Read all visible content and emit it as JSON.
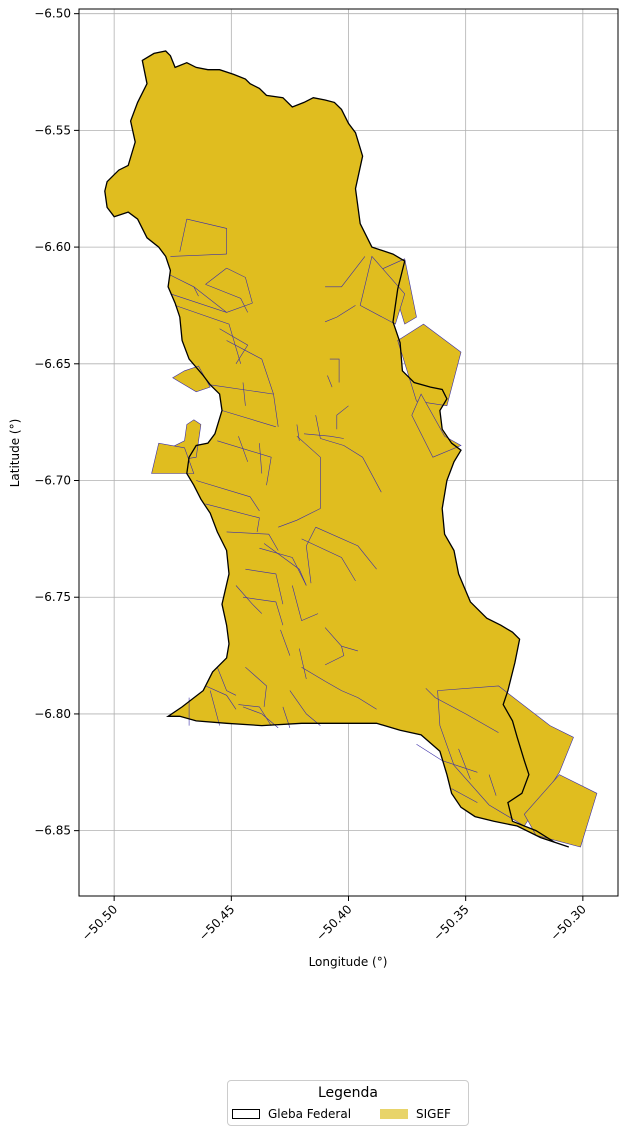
{
  "chart_data": {
    "type": "map",
    "xlabel": "Longitude (°)",
    "ylabel": "Latitude (°)",
    "xlim": [
      -50.515,
      -50.285
    ],
    "ylim": [
      -6.878,
      -6.498
    ],
    "grid": true,
    "x_ticks": [
      -50.5,
      -50.45,
      -50.4,
      -50.35,
      -50.3
    ],
    "x_tick_labels": [
      "−50.50",
      "−50.45",
      "−50.40",
      "−50.35",
      "−50.30"
    ],
    "y_ticks": [
      -6.5,
      -6.55,
      -6.6,
      -6.65,
      -6.7,
      -6.75,
      -6.8,
      -6.85
    ],
    "y_tick_labels": [
      "−6.50",
      "−6.55",
      "−6.60",
      "−6.65",
      "−6.70",
      "−6.75",
      "−6.80",
      "−6.85"
    ],
    "legend": {
      "title": "Legenda",
      "placement": "bottom-center",
      "entries": [
        {
          "label": "Gleba Federal",
          "style": "outline",
          "color": "#000000"
        },
        {
          "label": "SIGEF",
          "style": "fill",
          "color": "#e8d46a"
        }
      ]
    },
    "layers": [
      {
        "name": "Gleba Federal",
        "color": "#000000",
        "polygon": [
          [
            -50.488,
            -6.52
          ],
          [
            -50.483,
            -6.517
          ],
          [
            -50.478,
            -6.516
          ],
          [
            -50.476,
            -6.518
          ],
          [
            -50.474,
            -6.523
          ],
          [
            -50.469,
            -6.521
          ],
          [
            -50.465,
            -6.523
          ],
          [
            -50.46,
            -6.524
          ],
          [
            -50.455,
            -6.524
          ],
          [
            -50.449,
            -6.526
          ],
          [
            -50.444,
            -6.528
          ],
          [
            -50.442,
            -6.53
          ],
          [
            -50.438,
            -6.532
          ],
          [
            -50.435,
            -6.535
          ],
          [
            -50.428,
            -6.536
          ],
          [
            -50.424,
            -6.54
          ],
          [
            -50.419,
            -6.538
          ],
          [
            -50.415,
            -6.536
          ],
          [
            -50.41,
            -6.537
          ],
          [
            -50.406,
            -6.538
          ],
          [
            -50.403,
            -6.541
          ],
          [
            -50.4,
            -6.547
          ],
          [
            -50.397,
            -6.551
          ],
          [
            -50.394,
            -6.561
          ],
          [
            -50.397,
            -6.575
          ],
          [
            -50.395,
            -6.59
          ],
          [
            -50.39,
            -6.6
          ],
          [
            -50.381,
            -6.603
          ],
          [
            -50.376,
            -6.606
          ],
          [
            -50.379,
            -6.618
          ],
          [
            -50.381,
            -6.632
          ],
          [
            -50.378,
            -6.641
          ],
          [
            -50.377,
            -6.653
          ],
          [
            -50.372,
            -6.658
          ],
          [
            -50.365,
            -6.66
          ],
          [
            -50.36,
            -6.661
          ],
          [
            -50.358,
            -6.665
          ],
          [
            -50.361,
            -6.67
          ],
          [
            -50.36,
            -6.678
          ],
          [
            -50.356,
            -6.684
          ],
          [
            -50.352,
            -6.687
          ],
          [
            -50.355,
            -6.692
          ],
          [
            -50.358,
            -6.7
          ],
          [
            -50.36,
            -6.712
          ],
          [
            -50.359,
            -6.723
          ],
          [
            -50.355,
            -6.73
          ],
          [
            -50.353,
            -6.74
          ],
          [
            -50.348,
            -6.752
          ],
          [
            -50.341,
            -6.759
          ],
          [
            -50.335,
            -6.762
          ],
          [
            -50.33,
            -6.765
          ],
          [
            -50.327,
            -6.768
          ],
          [
            -50.329,
            -6.778
          ],
          [
            -50.332,
            -6.79
          ],
          [
            -50.334,
            -6.796
          ],
          [
            -50.33,
            -6.803
          ],
          [
            -50.328,
            -6.81
          ],
          [
            -50.325,
            -6.82
          ],
          [
            -50.323,
            -6.826
          ],
          [
            -50.326,
            -6.834
          ],
          [
            -50.332,
            -6.838
          ],
          [
            -50.33,
            -6.846
          ],
          [
            -50.32,
            -6.85
          ],
          [
            -50.312,
            -6.855
          ],
          [
            -50.306,
            -6.857
          ],
          [
            -50.318,
            -6.853
          ],
          [
            -50.328,
            -6.848
          ],
          [
            -50.338,
            -6.846
          ],
          [
            -50.346,
            -6.844
          ],
          [
            -50.352,
            -6.84
          ],
          [
            -50.356,
            -6.834
          ],
          [
            -50.358,
            -6.826
          ],
          [
            -50.361,
            -6.816
          ],
          [
            -50.369,
            -6.809
          ],
          [
            -50.378,
            -6.807
          ],
          [
            -50.388,
            -6.804
          ],
          [
            -50.403,
            -6.804
          ],
          [
            -50.42,
            -6.804
          ],
          [
            -50.437,
            -6.805
          ],
          [
            -50.452,
            -6.804
          ],
          [
            -50.465,
            -6.803
          ],
          [
            -50.472,
            -6.801
          ],
          [
            -50.477,
            -6.801
          ],
          [
            -50.471,
            -6.797
          ],
          [
            -50.462,
            -6.79
          ],
          [
            -50.458,
            -6.782
          ],
          [
            -50.452,
            -6.776
          ],
          [
            -50.451,
            -6.77
          ],
          [
            -50.452,
            -6.762
          ],
          [
            -50.454,
            -6.753
          ],
          [
            -50.451,
            -6.74
          ],
          [
            -50.452,
            -6.73
          ],
          [
            -50.456,
            -6.722
          ],
          [
            -50.459,
            -6.714
          ],
          [
            -50.463,
            -6.708
          ],
          [
            -50.466,
            -6.702
          ],
          [
            -50.469,
            -6.697
          ],
          [
            -50.468,
            -6.69
          ],
          [
            -50.465,
            -6.685
          ],
          [
            -50.46,
            -6.684
          ],
          [
            -50.457,
            -6.68
          ],
          [
            -50.454,
            -6.67
          ],
          [
            -50.455,
            -6.663
          ],
          [
            -50.459,
            -6.659
          ],
          [
            -50.462,
            -6.655
          ],
          [
            -50.468,
            -6.648
          ],
          [
            -50.471,
            -6.64
          ],
          [
            -50.472,
            -6.63
          ],
          [
            -50.474,
            -6.624
          ],
          [
            -50.477,
            -6.617
          ],
          [
            -50.476,
            -6.61
          ],
          [
            -50.478,
            -6.604
          ],
          [
            -50.481,
            -6.6
          ],
          [
            -50.486,
            -6.596
          ],
          [
            -50.49,
            -6.588
          ],
          [
            -50.494,
            -6.585
          ],
          [
            -50.5,
            -6.587
          ],
          [
            -50.503,
            -6.583
          ],
          [
            -50.504,
            -6.576
          ],
          [
            -50.503,
            -6.572
          ],
          [
            -50.498,
            -6.567
          ],
          [
            -50.494,
            -6.565
          ],
          [
            -50.491,
            -6.555
          ],
          [
            -50.493,
            -6.546
          ],
          [
            -50.49,
            -6.538
          ],
          [
            -50.486,
            -6.53
          ],
          [
            -50.488,
            -6.52
          ]
        ]
      },
      {
        "name": "SIGEF",
        "color": "#e0bd1f",
        "edge_color": "#3b2fa8",
        "parcels": [
          [
            [
              -50.466,
              -6.674
            ],
            [
              -50.463,
              -6.676
            ],
            [
              -50.465,
              -6.69
            ],
            [
              -50.477,
              -6.692
            ],
            [
              -50.476,
              -6.686
            ],
            [
              -50.47,
              -6.683
            ],
            [
              -50.469,
              -6.676
            ]
          ],
          [
            [
              -50.47,
              -6.686
            ],
            [
              -50.481,
              -6.684
            ],
            [
              -50.484,
              -6.697
            ],
            [
              -50.466,
              -6.697
            ]
          ],
          [
            [
              -50.47,
              -6.653
            ],
            [
              -50.464,
              -6.651
            ],
            [
              -50.459,
              -6.66
            ],
            [
              -50.465,
              -6.662
            ],
            [
              -50.475,
              -6.656
            ]
          ],
          [
            [
              -50.336,
              -6.788
            ],
            [
              -50.314,
              -6.805
            ],
            [
              -50.304,
              -6.81
            ],
            [
              -50.31,
              -6.825
            ],
            [
              -50.325,
              -6.848
            ],
            [
              -50.34,
              -6.839
            ],
            [
              -50.355,
              -6.822
            ],
            [
              -50.361,
              -6.805
            ],
            [
              -50.362,
              -6.79
            ]
          ],
          [
            [
              -50.31,
              -6.826
            ],
            [
              -50.294,
              -6.834
            ],
            [
              -50.301,
              -6.857
            ],
            [
              -50.32,
              -6.852
            ],
            [
              -50.325,
              -6.843
            ]
          ],
          [
            [
              -50.368,
              -6.633
            ],
            [
              -50.352,
              -6.645
            ],
            [
              -50.358,
              -6.668
            ],
            [
              -50.371,
              -6.666
            ],
            [
              -50.379,
              -6.64
            ]
          ],
          [
            [
              -50.369,
              -6.663
            ],
            [
              -50.359,
              -6.681
            ],
            [
              -50.352,
              -6.685
            ],
            [
              -50.364,
              -6.69
            ],
            [
              -50.373,
              -6.672
            ]
          ],
          [
            [
              -50.387,
              -6.61
            ],
            [
              -50.376,
              -6.605
            ],
            [
              -50.371,
              -6.63
            ],
            [
              -50.376,
              -6.633
            ],
            [
              -50.38,
              -6.62
            ]
          ],
          [
            [
              -50.39,
              -6.604
            ],
            [
              -50.395,
              -6.625
            ],
            [
              -50.38,
              -6.633
            ],
            [
              -50.376,
              -6.62
            ]
          ]
        ]
      }
    ]
  }
}
